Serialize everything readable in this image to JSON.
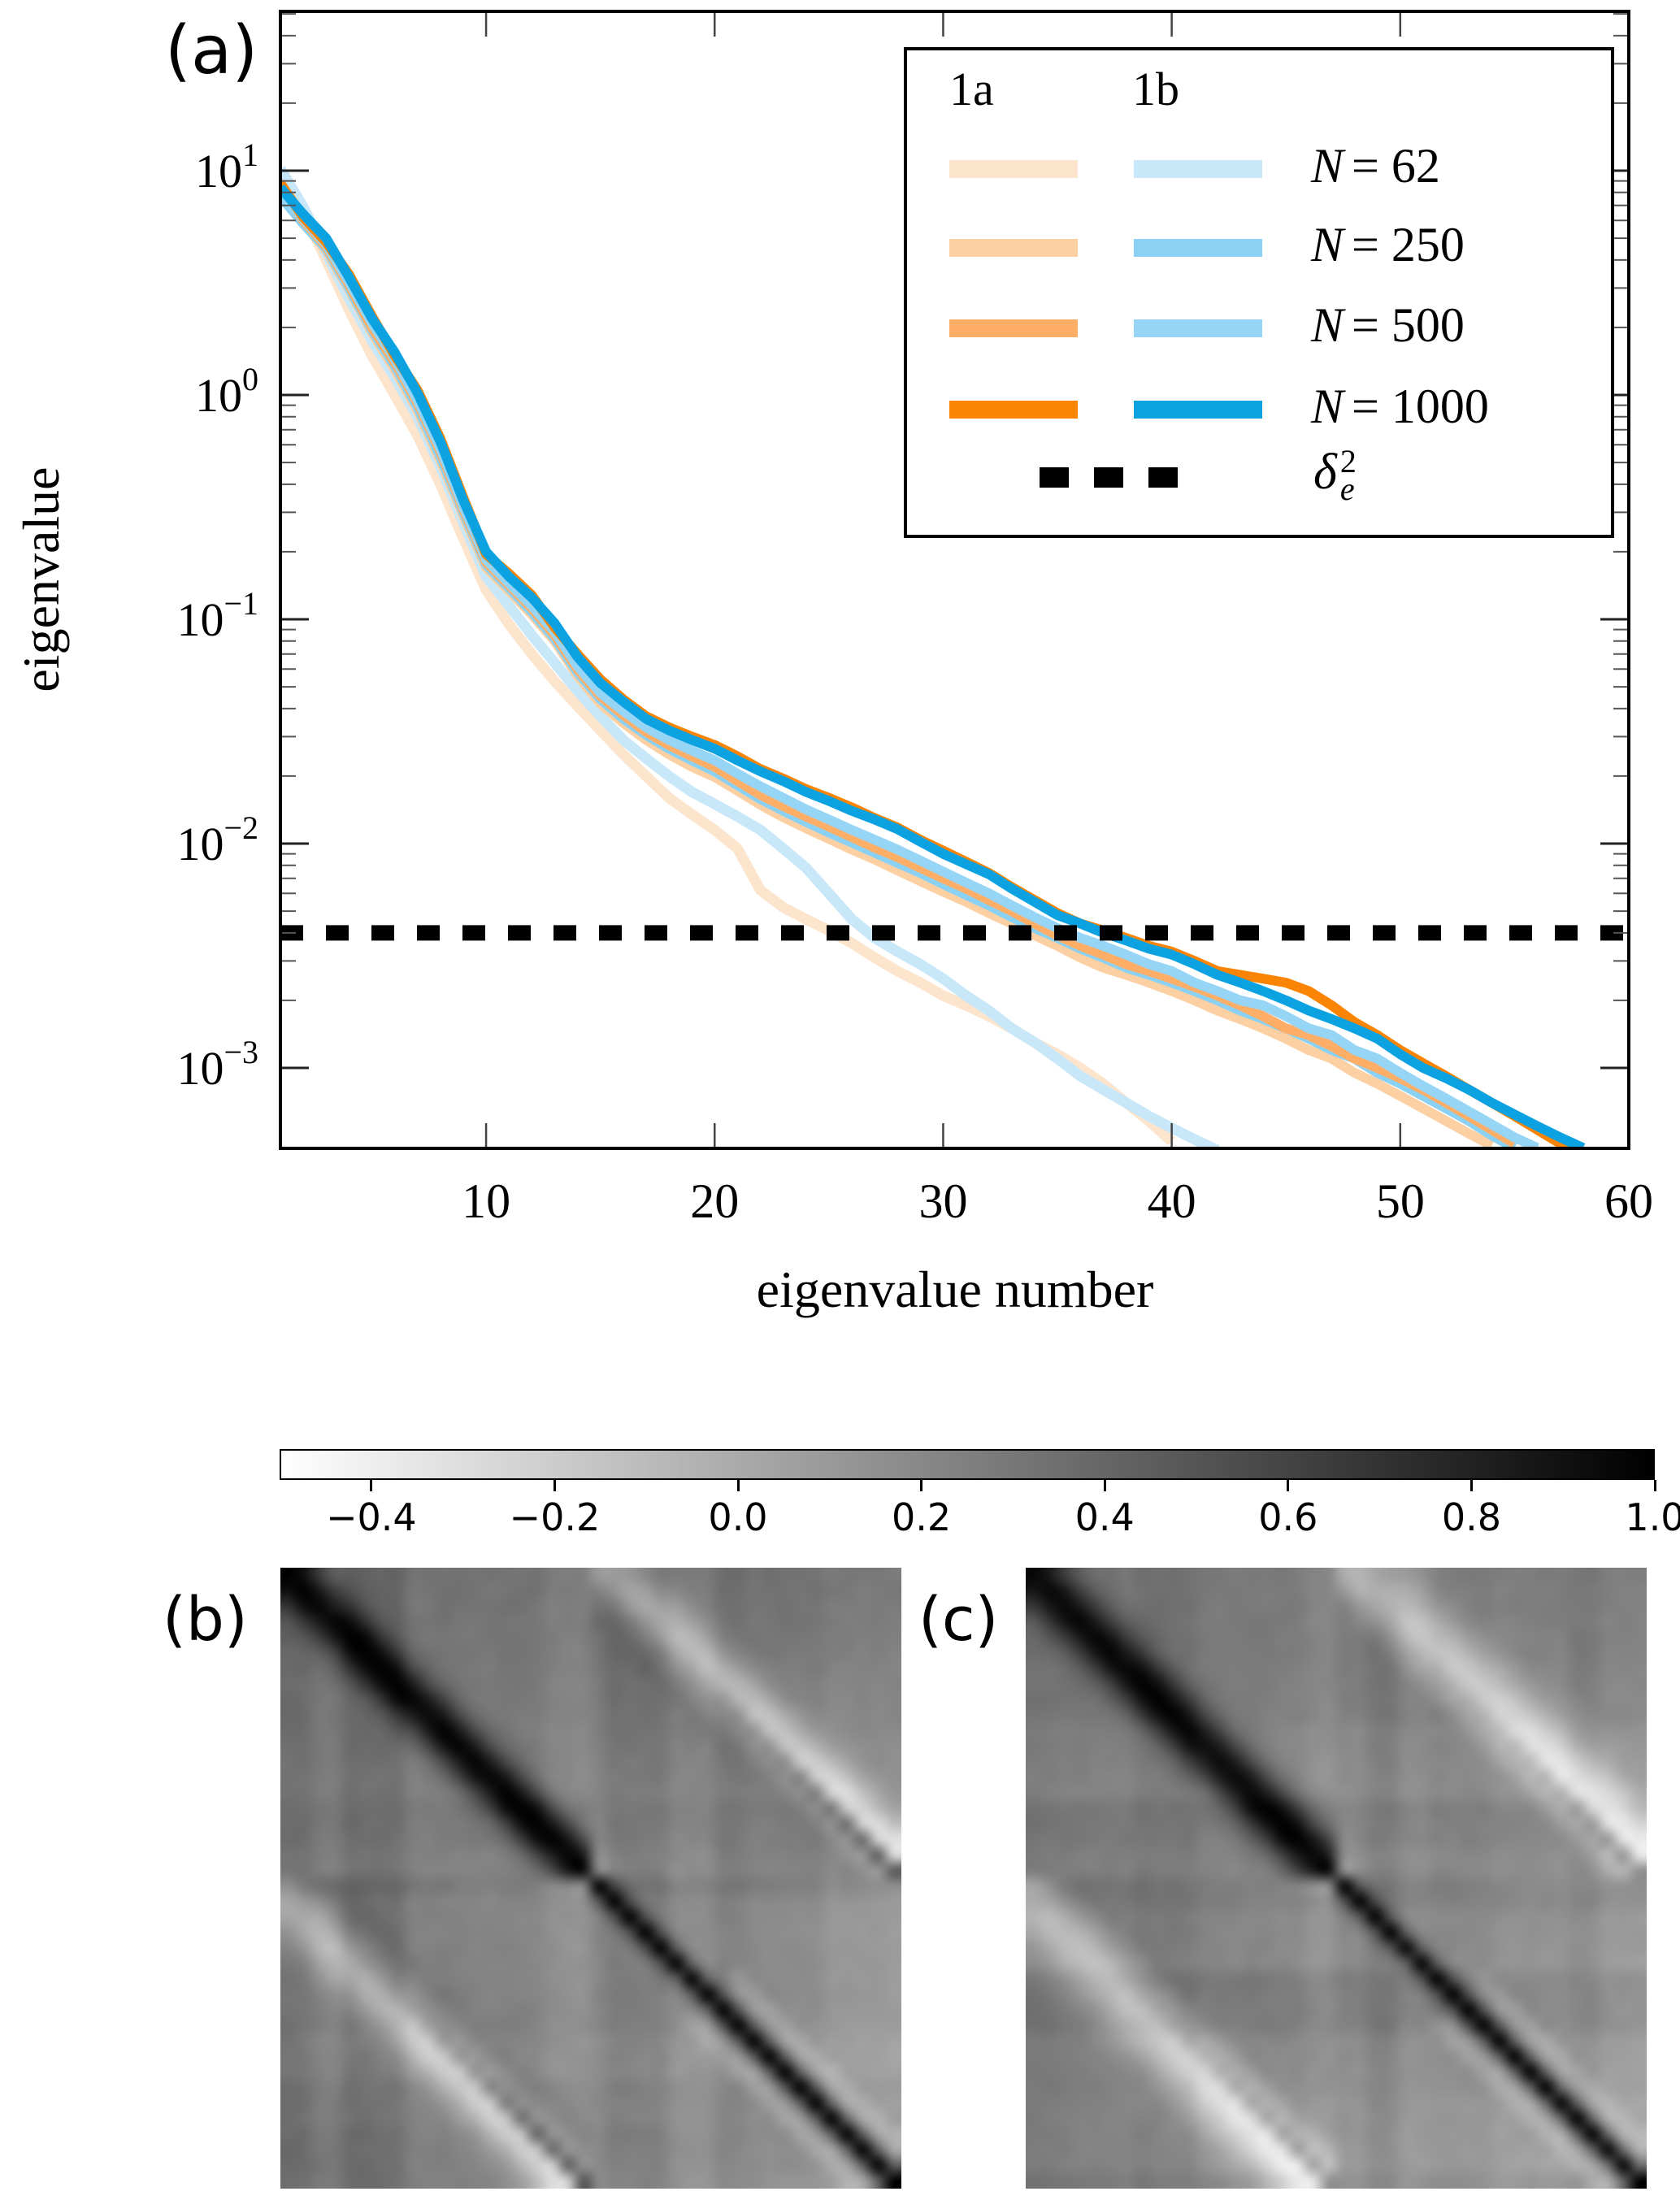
{
  "figure": {
    "panel_a_label": "(a)",
    "panel_b_label": "(b)",
    "panel_c_label": "(c)"
  },
  "chart_data": [
    {
      "id": "panel_a",
      "type": "line",
      "xlabel": "eigenvalue number",
      "ylabel": "eigenvalue",
      "xlim": [
        1,
        60
      ],
      "x_ticks": [
        10,
        20,
        30,
        40,
        50,
        60
      ],
      "y_scale": "log",
      "ylim": [
        0.00044,
        51
      ],
      "y_tick_base": "10",
      "y_tick_exponents": [
        "1",
        "0",
        "−1",
        "−2",
        "−3"
      ],
      "grid": false,
      "legend_position": "upper right",
      "reference_line": {
        "label": "delta_e^2",
        "value": 0.004,
        "style": "dashed",
        "color": "#000000"
      },
      "legend": {
        "column_headers": [
          "1a",
          "1b"
        ],
        "rows": [
          {
            "var": "N",
            "eq": " = ",
            "value": "62"
          },
          {
            "var": "N",
            "eq": " = ",
            "value": "250"
          },
          {
            "var": "N",
            "eq": " = ",
            "value": "500"
          },
          {
            "var": "N",
            "eq": " = ",
            "value": "1000"
          }
        ],
        "dashed_entry": {
          "symbol": "δ",
          "sup": "2",
          "sub": "e"
        }
      },
      "series": [
        {
          "name": "1a N=62",
          "case": "1a",
          "N": 62,
          "color": "#fce4cd",
          "line_width": 13,
          "x_start": 1,
          "values": [
            9.6,
            6.6,
            4.0,
            2.4,
            1.5,
            1.0,
            0.66,
            0.4,
            0.23,
            0.135,
            0.095,
            0.07,
            0.053,
            0.041,
            0.032,
            0.025,
            0.02,
            0.016,
            0.0135,
            0.0115,
            0.0095,
            0.0062,
            0.0052,
            0.0046,
            0.0041,
            0.0036,
            0.0031,
            0.0027,
            0.0024,
            0.0021,
            0.0019,
            0.0017,
            0.0015,
            0.0013,
            0.00115,
            0.001,
            0.00085,
            0.0007,
            0.00058,
            0.00047
          ]
        },
        {
          "name": "1b N=62",
          "case": "1b",
          "N": 62,
          "color": "#c8e7f9",
          "line_width": 13,
          "x_start": 1,
          "values": [
            10.2,
            6.9,
            4.3,
            2.7,
            1.75,
            1.2,
            0.8,
            0.48,
            0.27,
            0.155,
            0.115,
            0.085,
            0.064,
            0.048,
            0.037,
            0.029,
            0.024,
            0.02,
            0.017,
            0.015,
            0.0132,
            0.0115,
            0.0095,
            0.0078,
            0.006,
            0.0046,
            0.0038,
            0.0033,
            0.0029,
            0.0025,
            0.0021,
            0.0018,
            0.0015,
            0.0013,
            0.0011,
            0.00092,
            0.0008,
            0.0007,
            0.00061,
            0.00054,
            0.00048,
            0.00043
          ]
        },
        {
          "name": "1a N=250",
          "case": "1a",
          "N": 250,
          "color": "#fdd0a3",
          "line_width": 12,
          "x_start": 1,
          "values": [
            8.5,
            5.9,
            4.4,
            2.95,
            1.9,
            1.3,
            0.85,
            0.51,
            0.29,
            0.17,
            0.134,
            0.105,
            0.08,
            0.056,
            0.042,
            0.0345,
            0.029,
            0.025,
            0.022,
            0.0198,
            0.0172,
            0.0149,
            0.0131,
            0.0117,
            0.0105,
            0.0094,
            0.0085,
            0.0076,
            0.0068,
            0.0061,
            0.0055,
            0.0049,
            0.0044,
            0.0039,
            0.0035,
            0.0031,
            0.0028,
            0.0026,
            0.0024,
            0.0022,
            0.002,
            0.0018,
            0.00165,
            0.0015,
            0.00135,
            0.0012,
            0.0011,
            0.00095,
            0.00085,
            0.00075,
            0.00066,
            0.00058,
            0.00051,
            0.00045
          ]
        },
        {
          "name": "1b N=250",
          "case": "1b",
          "N": 250,
          "color": "#8bd1f3",
          "line_width": 12,
          "x_start": 1,
          "values": [
            7.7,
            5.8,
            4.5,
            3.0,
            1.95,
            1.35,
            0.88,
            0.53,
            0.3,
            0.175,
            0.138,
            0.108,
            0.082,
            0.058,
            0.044,
            0.036,
            0.0305,
            0.0265,
            0.0235,
            0.021,
            0.0182,
            0.0158,
            0.014,
            0.0125,
            0.0112,
            0.0101,
            0.0091,
            0.0082,
            0.0074,
            0.0066,
            0.0059,
            0.0053,
            0.0047,
            0.0042,
            0.0038,
            0.0034,
            0.0031,
            0.0028,
            0.0026,
            0.0024,
            0.0022,
            0.002,
            0.0018,
            0.00165,
            0.0015,
            0.00135,
            0.0012,
            0.0011,
            0.00095,
            0.00085,
            0.00075,
            0.00066,
            0.00058,
            0.0005,
            0.00044
          ]
        },
        {
          "name": "1a N=500",
          "case": "1a",
          "N": 500,
          "color": "#feae67",
          "line_width": 12,
          "x_start": 1,
          "values": [
            8.2,
            6.0,
            4.6,
            3.1,
            2.0,
            1.4,
            0.92,
            0.56,
            0.31,
            0.18,
            0.142,
            0.112,
            0.085,
            0.06,
            0.0455,
            0.0375,
            0.0315,
            0.0275,
            0.0245,
            0.022,
            0.019,
            0.0165,
            0.0147,
            0.0132,
            0.0119,
            0.0107,
            0.0096,
            0.0087,
            0.0078,
            0.007,
            0.0063,
            0.0056,
            0.005,
            0.0044,
            0.0039,
            0.0035,
            0.0032,
            0.0029,
            0.0027,
            0.0025,
            0.0023,
            0.0021,
            0.0019,
            0.0017,
            0.0015,
            0.0014,
            0.00125,
            0.0011,
            0.001,
            0.0009,
            0.0008,
            0.0007,
            0.00061,
            0.00053,
            0.00046
          ]
        },
        {
          "name": "1b N=500",
          "case": "1b",
          "N": 500,
          "color": "#97d5f6",
          "line_width": 12,
          "x_start": 1,
          "values": [
            8.0,
            6.1,
            4.7,
            3.2,
            2.1,
            1.45,
            0.95,
            0.58,
            0.32,
            0.185,
            0.145,
            0.115,
            0.088,
            0.062,
            0.047,
            0.039,
            0.033,
            0.029,
            0.026,
            0.0235,
            0.0205,
            0.018,
            0.016,
            0.0142,
            0.0128,
            0.0115,
            0.0104,
            0.0094,
            0.0084,
            0.0075,
            0.0067,
            0.006,
            0.0053,
            0.0047,
            0.0042,
            0.0038,
            0.0035,
            0.0032,
            0.0029,
            0.0027,
            0.0024,
            0.0022,
            0.002,
            0.0019,
            0.0017,
            0.0015,
            0.0014,
            0.0012,
            0.0011,
            0.00095,
            0.00083,
            0.00073,
            0.00064,
            0.00056,
            0.00049,
            0.00044
          ]
        },
        {
          "name": "1a N=1000",
          "case": "1a",
          "N": 1000,
          "color": "#fb8402",
          "line_width": 12,
          "x_start": 1,
          "values": [
            8.8,
            6.2,
            4.8,
            3.45,
            2.25,
            1.5,
            1.05,
            0.64,
            0.35,
            0.195,
            0.16,
            0.128,
            0.092,
            0.07,
            0.054,
            0.044,
            0.037,
            0.033,
            0.03,
            0.0275,
            0.0245,
            0.0215,
            0.0195,
            0.0175,
            0.016,
            0.0145,
            0.013,
            0.0118,
            0.0104,
            0.0093,
            0.0083,
            0.0074,
            0.0064,
            0.0056,
            0.0049,
            0.0044,
            0.0041,
            0.0038,
            0.0035,
            0.0033,
            0.003,
            0.0027,
            0.0026,
            0.0025,
            0.0024,
            0.0022,
            0.0019,
            0.0016,
            0.0014,
            0.0012,
            0.00105,
            0.00092,
            0.0008,
            0.0007,
            0.00061,
            0.00053,
            0.00046,
            0.00041
          ]
        },
        {
          "name": "1b N=1000",
          "case": "1b",
          "N": 1000,
          "color": "#0ca2e2",
          "line_width": 12,
          "x_start": 1,
          "values": [
            8.4,
            6.4,
            5.0,
            3.35,
            2.2,
            1.55,
            1.02,
            0.62,
            0.34,
            0.2,
            0.155,
            0.125,
            0.096,
            0.068,
            0.052,
            0.043,
            0.036,
            0.032,
            0.029,
            0.0265,
            0.0235,
            0.021,
            0.019,
            0.017,
            0.0155,
            0.014,
            0.0128,
            0.0116,
            0.0102,
            0.009,
            0.0081,
            0.0073,
            0.0063,
            0.0055,
            0.0048,
            0.0044,
            0.004,
            0.0037,
            0.0034,
            0.0032,
            0.0029,
            0.0026,
            0.0024,
            0.0022,
            0.002,
            0.0018,
            0.00165,
            0.0015,
            0.00135,
            0.00115,
            0.001,
            0.0009,
            0.0008,
            0.0007,
            0.00062,
            0.00055,
            0.00049,
            0.00044
          ]
        }
      ]
    },
    {
      "id": "colorbar",
      "type": "colorbar",
      "orientation": "horizontal",
      "range": [
        -0.5,
        1.0
      ],
      "ticks": [
        -0.4,
        -0.2,
        0.0,
        0.2,
        0.4,
        0.6,
        0.8,
        1.0
      ],
      "tick_labels": [
        "−0.4",
        "−0.2",
        "0.0",
        "0.2",
        "0.4",
        "0.6",
        "0.8",
        "1.0"
      ],
      "colormap": "white-to-black"
    },
    {
      "id": "panel_b",
      "type": "heatmap",
      "colormap": "gray_r",
      "value_range": [
        -0.5,
        1.0
      ],
      "n": 40,
      "blocks": 2,
      "seed": 11,
      "structure": {
        "diag_value": 1.0,
        "tl_base": 0.4,
        "tl_fade": 0.22,
        "tl_sigma": 1.6,
        "br_base": 0.3,
        "br_fade": 0.24,
        "br_sigma": 0.8,
        "cross_base": 0.33,
        "cross_fade": 0.2,
        "white_strength": 0.55,
        "white_width": 1.7,
        "cross_diag_dark": 0.85,
        "upper_dark": 0.11,
        "noise": 0.05
      }
    },
    {
      "id": "panel_c",
      "type": "heatmap",
      "colormap": "gray_r",
      "value_range": [
        -0.5,
        1.0
      ],
      "n": 40,
      "blocks": 2,
      "seed": 29,
      "structure": {
        "diag_value": 1.0,
        "tl_base": 0.4,
        "tl_fade": 0.22,
        "tl_sigma": 1.7,
        "br_base": 0.3,
        "br_fade": 0.24,
        "br_sigma": 0.8,
        "cross_base": 0.33,
        "cross_fade": 0.2,
        "white_strength": 0.62,
        "white_width": 2.3,
        "cross_diag_dark": 0.6,
        "upper_dark": 0.12,
        "noise": 0.05
      }
    }
  ]
}
